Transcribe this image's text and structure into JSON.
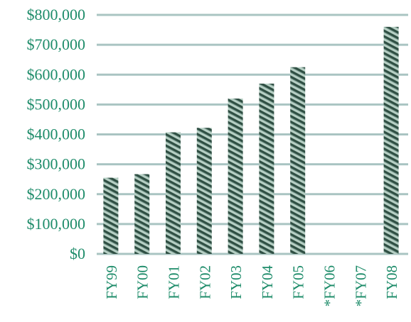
{
  "chart_data": {
    "type": "bar",
    "categories": [
      "FY99",
      "FY00",
      "FY01",
      "FY02",
      "FY03",
      "FY04",
      "FY05",
      "*FY06",
      "*FY07",
      "FY08"
    ],
    "values": [
      255000,
      267000,
      407000,
      422000,
      520000,
      570000,
      625000,
      null,
      null,
      760000
    ],
    "yticks": [
      0,
      100000,
      200000,
      300000,
      400000,
      500000,
      600000,
      700000,
      800000
    ],
    "ytick_labels": [
      "$0",
      "$100,000",
      "$200,000",
      "$300,000",
      "$400,000",
      "$500,000",
      "$600,000",
      "$700,000",
      "$800,000"
    ],
    "ylim": [
      0,
      800000
    ],
    "title": "",
    "xlabel": "",
    "ylabel": "",
    "grid": true,
    "legend": "none",
    "colors": {
      "text": "#1e8c6a",
      "grid": "#a9c4c2",
      "bar_dark": "#2f4f43",
      "bar_light": "#b6cfc4"
    }
  }
}
